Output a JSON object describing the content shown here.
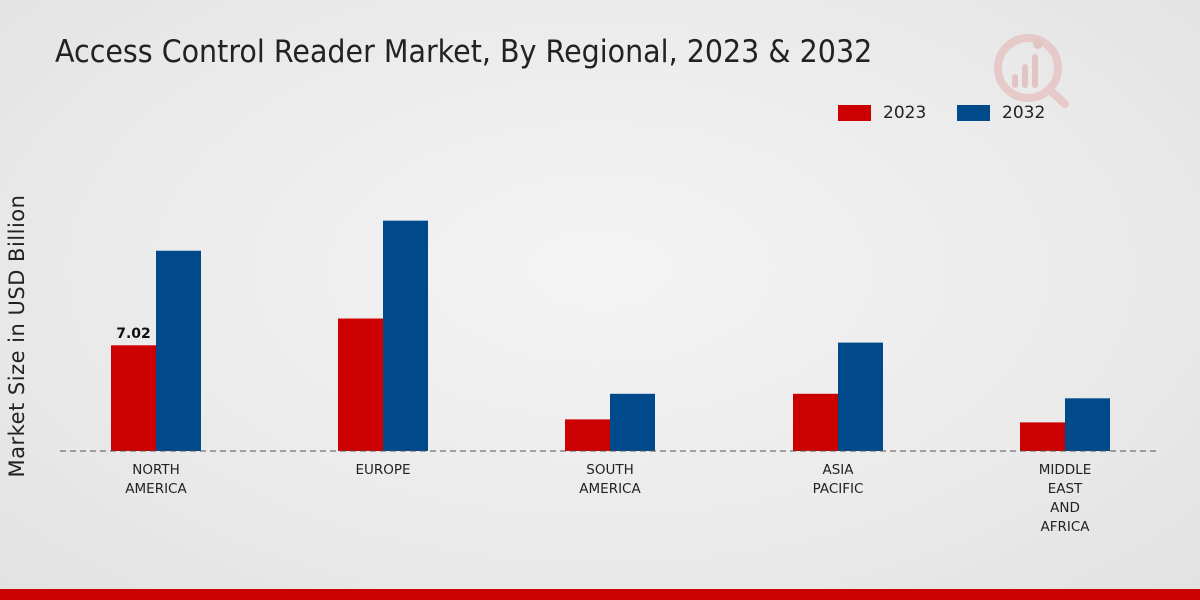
{
  "chart_data": {
    "type": "bar",
    "title": "Access Control Reader Market, By Regional, 2023 & 2032",
    "xlabel": "",
    "ylabel": "Market Size in USD Billion",
    "categories": [
      [
        "NORTH",
        "AMERICA"
      ],
      [
        "EUROPE"
      ],
      [
        "SOUTH",
        "AMERICA"
      ],
      [
        "ASIA",
        "PACIFIC"
      ],
      [
        "MIDDLE",
        "EAST",
        "AND",
        "AFRICA"
      ]
    ],
    "series": [
      {
        "name": "2023",
        "color": "#cc0000",
        "values": [
          7.02,
          8.8,
          2.1,
          3.8,
          1.9
        ]
      },
      {
        "name": "2032",
        "color": "#004a8b",
        "values": [
          13.3,
          15.3,
          3.8,
          7.2,
          3.5
        ]
      }
    ],
    "data_labels": [
      {
        "series": 0,
        "index": 0,
        "text": "7.02"
      }
    ],
    "ylim": [
      0,
      18
    ],
    "legend_position": "top-right",
    "grid": false
  }
}
